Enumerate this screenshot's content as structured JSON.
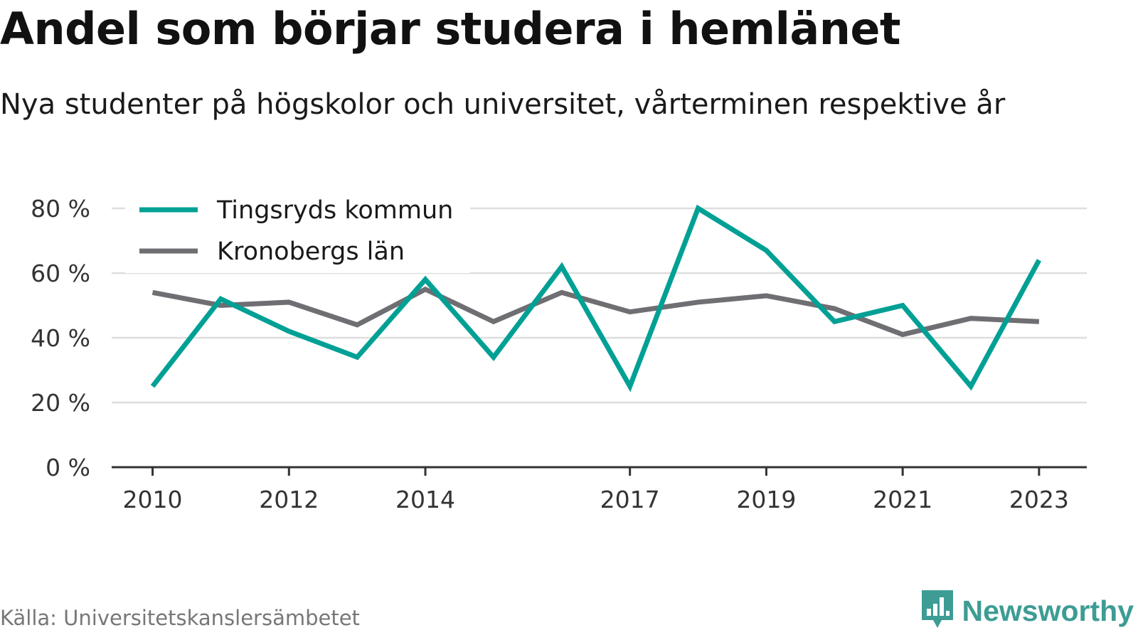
{
  "title": "Andel som börjar studera i hemlänet",
  "subtitle": "Nya studenter på högskolor och universitet, vårterminen respektive år",
  "source": "Källa: Universitetskanslersämbetet",
  "brand": {
    "name": "Newsworthy",
    "icon": "newsworthy-logo-icon",
    "color": "#3d9c94"
  },
  "chart_data": {
    "type": "line",
    "title": "Andel som börjar studera i hemlänet",
    "subtitle": "Nya studenter på högskolor och universitet, vårterminen respektive år",
    "xlabel": "",
    "ylabel": "",
    "x": [
      2010,
      2011,
      2012,
      2013,
      2014,
      2015,
      2016,
      2017,
      2018,
      2019,
      2020,
      2021,
      2022,
      2023
    ],
    "x_ticks": [
      2010,
      2012,
      2014,
      2017,
      2019,
      2021,
      2023
    ],
    "x_tick_labels": [
      "2010",
      "2012",
      "2014",
      "2017",
      "2019",
      "2021",
      "2023"
    ],
    "ylim": [
      0,
      80
    ],
    "y_ticks": [
      0,
      20,
      40,
      60,
      80
    ],
    "y_tick_labels": [
      "0 %",
      "20 %",
      "40 %",
      "60 %",
      "80 %"
    ],
    "grid": true,
    "legend_position": "top-left",
    "series": [
      {
        "name": "Tingsryds kommun",
        "color": "#00a095",
        "values": [
          25,
          52,
          42,
          34,
          58,
          34,
          62,
          25,
          80,
          67,
          45,
          50,
          25,
          64
        ]
      },
      {
        "name": "Kronobergs län",
        "color": "#6e6e73",
        "values": [
          54,
          50,
          51,
          44,
          55,
          45,
          54,
          48,
          51,
          53,
          49,
          41,
          46,
          45
        ]
      }
    ]
  }
}
